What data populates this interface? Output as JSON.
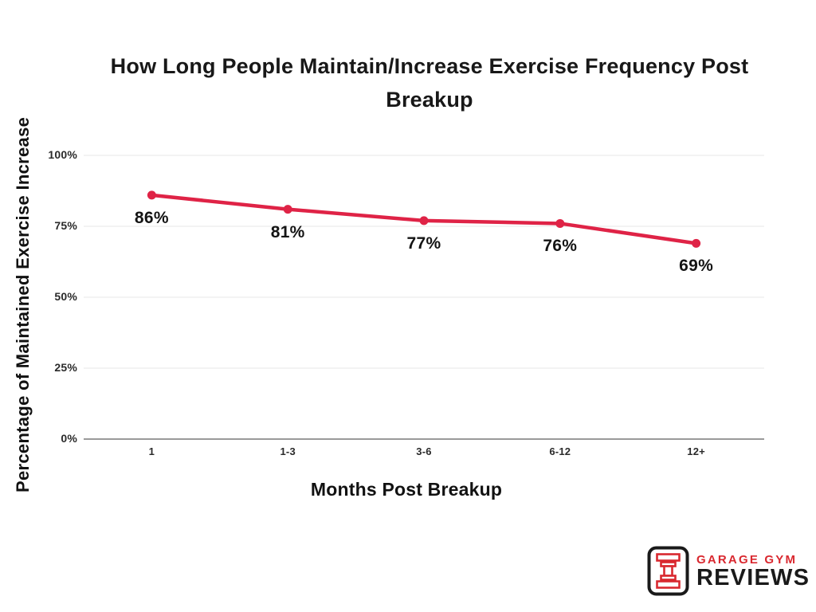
{
  "chart_data": {
    "type": "line",
    "title": "How Long People Maintain/Increase Exercise Frequency Post Breakup",
    "title_lines": [
      "How Long People Maintain/Increase Exercise Frequency Post",
      "Breakup"
    ],
    "xlabel": "Months Post Breakup",
    "ylabel": "Percentage of Maintained Exercise Increase",
    "categories": [
      "1",
      "1-3",
      "3-6",
      "6-12",
      "12+"
    ],
    "values": [
      86,
      81,
      77,
      76,
      69
    ],
    "data_labels": [
      "86%",
      "81%",
      "77%",
      "76%",
      "69%"
    ],
    "yticks": [
      0,
      25,
      50,
      75,
      100
    ],
    "ytick_labels": [
      "0%",
      "25%",
      "50%",
      "75%",
      "100%"
    ],
    "ylim": [
      0,
      100
    ],
    "grid": "horizontal-only",
    "legend": "none",
    "line_color": "#df2346",
    "marker": "circle"
  },
  "logo": {
    "line1": "GARAGE GYM",
    "line2": "REVIEWS",
    "red": "#d9282f",
    "black": "#1a1a1a",
    "icon": "dumbbell-icon"
  }
}
